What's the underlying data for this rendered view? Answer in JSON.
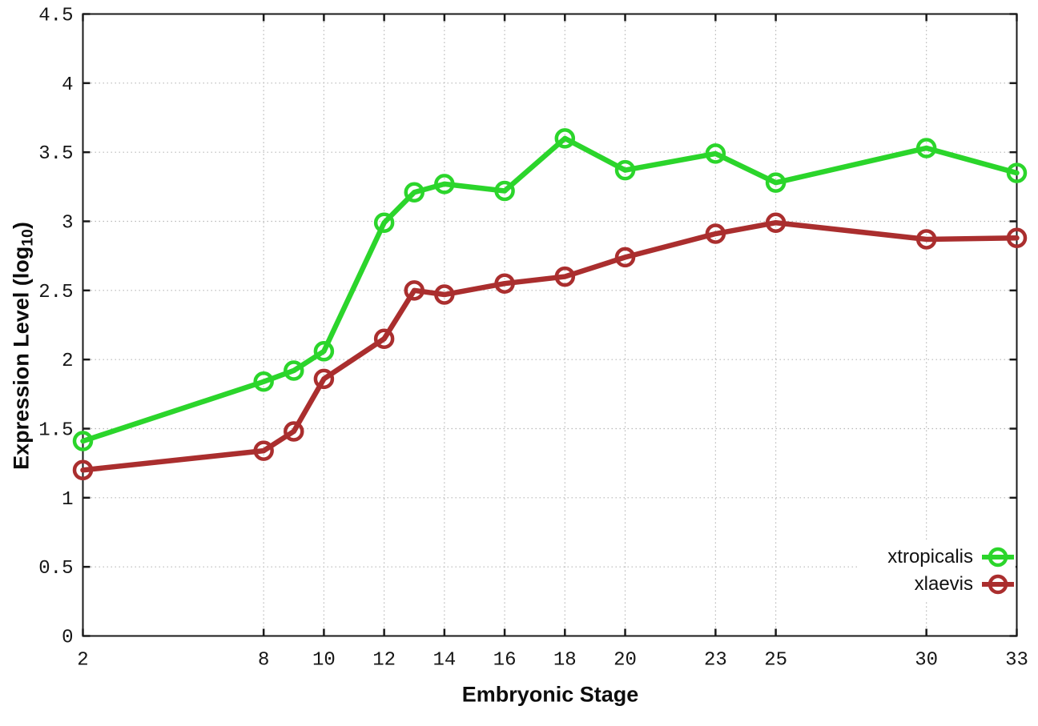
{
  "figure": {
    "xlabel": "Embryonic Stage",
    "ylabel": {
      "prefix": "Expression Level (log",
      "sub": "10",
      "suffix": ")"
    },
    "background_color": "#ffffff",
    "axis_color": "#1a1a1a",
    "grid_color": "#b8b8b8",
    "tick_label_color": "#161616"
  },
  "chart_data": {
    "type": "line",
    "title": "",
    "xlabel": "Embryonic Stage",
    "ylabel": "Expression Level (log10)",
    "x": [
      2,
      8,
      9,
      10,
      12,
      13,
      14,
      16,
      18,
      20,
      23,
      25,
      30,
      33
    ],
    "series": [
      {
        "name": "xtropicalis",
        "color": "#2bd52b",
        "marker": "open-circle",
        "values": [
          1.41,
          1.84,
          1.92,
          2.06,
          2.99,
          3.21,
          3.27,
          3.22,
          3.6,
          3.37,
          3.49,
          3.28,
          3.53,
          3.35
        ]
      },
      {
        "name": "xlaevis",
        "color": "#aa2e2e",
        "marker": "open-circle",
        "values": [
          1.2,
          1.34,
          1.48,
          1.86,
          2.15,
          2.5,
          2.47,
          2.55,
          2.6,
          2.74,
          2.91,
          2.99,
          2.87,
          2.88
        ]
      }
    ],
    "xlim": [
      2,
      33
    ],
    "ylim": [
      0,
      4.5
    ],
    "x_tick_values": [
      2,
      8,
      10,
      12,
      14,
      16,
      18,
      20,
      23,
      25,
      30,
      33
    ],
    "x_tick_labels": [
      "2",
      "8",
      "10",
      "12",
      "14",
      "16",
      "18",
      "20",
      "23",
      "25",
      "30",
      "33"
    ],
    "y_tick_values": [
      0,
      0.5,
      1,
      1.5,
      2,
      2.5,
      3,
      3.5,
      4,
      4.5
    ],
    "y_tick_labels": [
      "0",
      "0.5",
      "1",
      "1.5",
      "2",
      "2.5",
      "3",
      "3.5",
      "4",
      "4.5"
    ],
    "grid": true,
    "grid_style": "dotted",
    "legend_position": "bottom-right"
  }
}
